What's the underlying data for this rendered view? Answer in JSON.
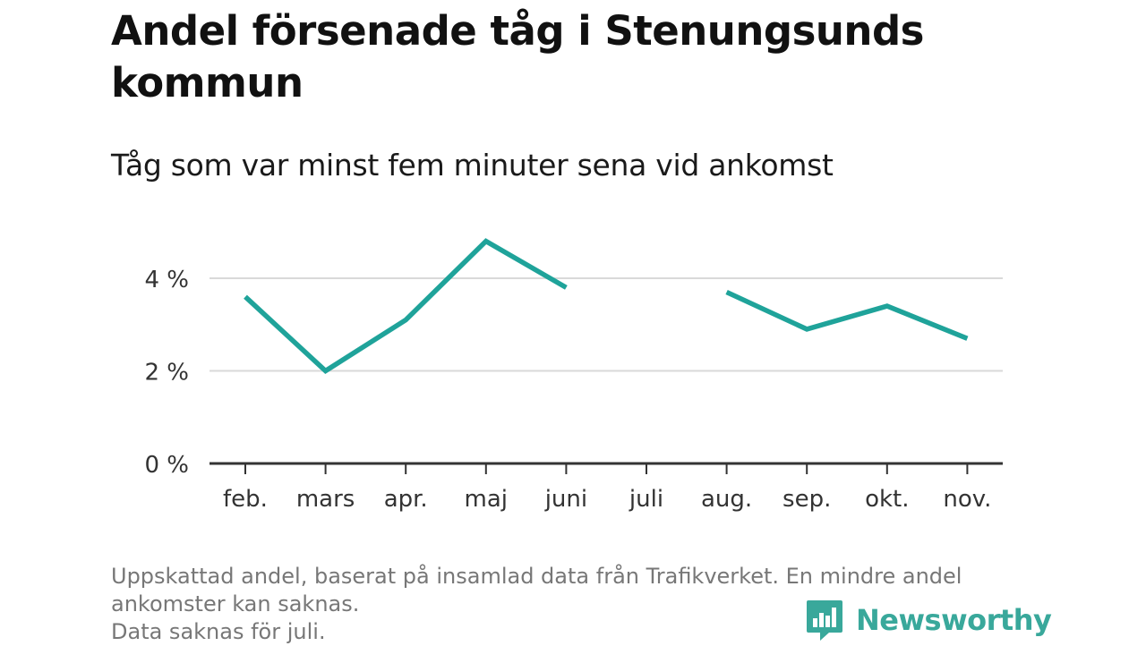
{
  "title": "Andel försenade tåg i Stenungsunds kommun",
  "subtitle": "Tåg som var minst fem minuter sena vid ankomst",
  "footnote": {
    "line1": "Uppskattad andel, baserat på insamlad data från Trafikverket. En mindre andel",
    "line2": "ankomster kan saknas.",
    "line3": "Data saknas för juli."
  },
  "brand": {
    "name": "Newsworthy",
    "icon": "newsworthy-chart-logo-icon",
    "color": "#39a89b"
  },
  "chart_data": {
    "type": "line",
    "categories": [
      "feb.",
      "mars",
      "apr.",
      "maj",
      "juni",
      "juli",
      "aug.",
      "sep.",
      "okt.",
      "nov."
    ],
    "series": [
      {
        "values": [
          3.6,
          2.0,
          3.1,
          4.8,
          3.8,
          null,
          3.7,
          2.9,
          3.4,
          2.7
        ]
      }
    ],
    "y_ticks": [
      0,
      2,
      4
    ],
    "y_tick_labels": [
      "0 %",
      "2 %",
      "4 %"
    ],
    "ylim": [
      0,
      5
    ],
    "grid": true,
    "line_color": "#1fa39a",
    "xlabel": "",
    "ylabel": ""
  }
}
